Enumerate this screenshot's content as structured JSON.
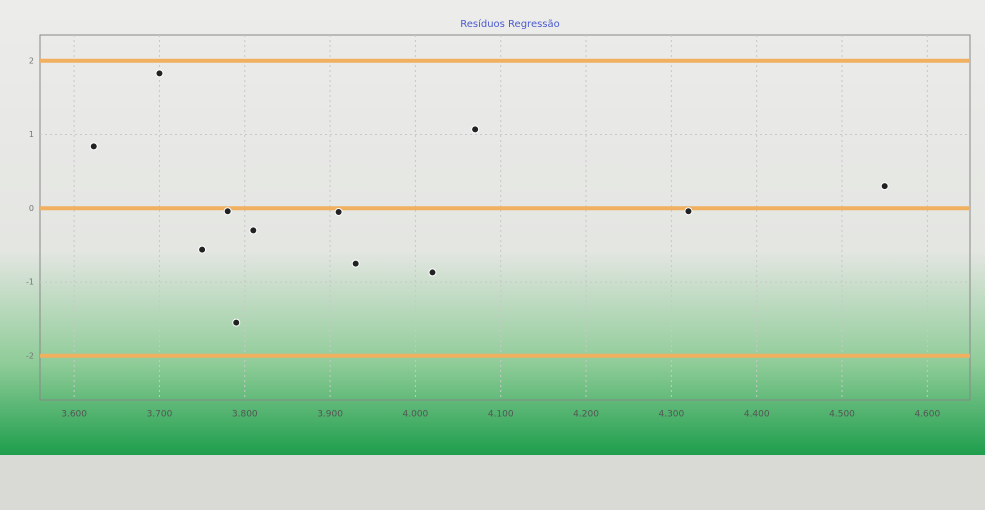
{
  "chart_data": {
    "type": "scatter",
    "title": "Resíduos Regressão",
    "x": [
      3.623,
      3.7,
      3.75,
      3.78,
      3.79,
      3.81,
      3.91,
      3.93,
      4.02,
      4.07,
      4.32,
      4.55
    ],
    "values": [
      0.84,
      1.83,
      -0.56,
      -0.04,
      -1.55,
      -0.3,
      -0.05,
      -0.75,
      -0.87,
      1.07,
      -0.04,
      0.3
    ],
    "color": "#222222",
    "reference_lines": [
      2,
      0,
      -2
    ],
    "reference_color": "#f0b060",
    "xlim": [
      3.56,
      4.65
    ],
    "ylim": [
      -2.6,
      2.35
    ],
    "xticks": [
      {
        "value": 3.6,
        "label": "3.600"
      },
      {
        "value": 3.7,
        "label": "3.700"
      },
      {
        "value": 3.8,
        "label": "3.800"
      },
      {
        "value": 3.9,
        "label": "3.900"
      },
      {
        "value": 4.0,
        "label": "4.000"
      },
      {
        "value": 4.1,
        "label": "4.100"
      },
      {
        "value": 4.2,
        "label": "4.200"
      },
      {
        "value": 4.3,
        "label": "4.300"
      },
      {
        "value": 4.4,
        "label": "4.400"
      },
      {
        "value": 4.5,
        "label": "4.500"
      },
      {
        "value": 4.6,
        "label": "4.600"
      }
    ],
    "yticks": [
      2,
      1,
      0,
      -1,
      -2
    ],
    "grid": true
  }
}
